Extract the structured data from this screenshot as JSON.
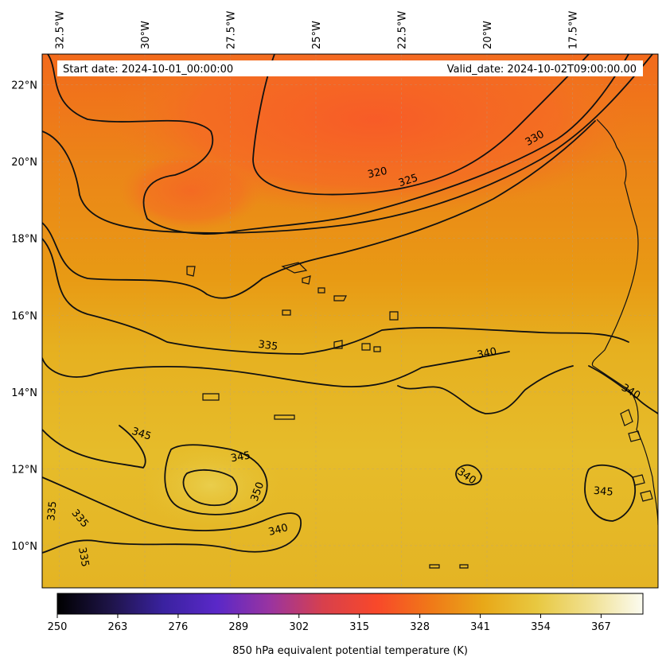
{
  "header": {
    "start_date": "Start date: 2024-10-01_00:00:00",
    "valid_date": "Valid_date: 2024-10-02T09:00:00.00"
  },
  "map": {
    "lon_range": [
      -33.0,
      -15.0
    ],
    "lat_range": [
      8.9,
      22.8
    ],
    "lon_ticks": [
      {
        "value": -32.5,
        "label": "32.5°W"
      },
      {
        "value": -30.0,
        "label": "30°W"
      },
      {
        "value": -27.5,
        "label": "27.5°W"
      },
      {
        "value": -25.0,
        "label": "25°W"
      },
      {
        "value": -22.5,
        "label": "22.5°W"
      },
      {
        "value": -20.0,
        "label": "20°W"
      },
      {
        "value": -17.5,
        "label": "17.5°W"
      }
    ],
    "lat_ticks": [
      {
        "value": 10,
        "label": "10°N"
      },
      {
        "value": 12,
        "label": "12°N"
      },
      {
        "value": 14,
        "label": "14°N"
      },
      {
        "value": 16,
        "label": "16°N"
      },
      {
        "value": 18,
        "label": "18°N"
      },
      {
        "value": 20,
        "label": "20°N"
      },
      {
        "value": 22,
        "label": "22°N"
      }
    ],
    "contour_labels": [
      {
        "text": "320",
        "lon": -23.2,
        "lat": 19.7,
        "rotate": -12
      },
      {
        "text": "325",
        "lon": -22.3,
        "lat": 19.5,
        "rotate": -18
      },
      {
        "text": "330",
        "lon": -18.6,
        "lat": 20.6,
        "rotate": -30
      },
      {
        "text": "335",
        "lon": -26.4,
        "lat": 15.2,
        "rotate": 8
      },
      {
        "text": "340",
        "lon": -20.0,
        "lat": 15.0,
        "rotate": -12
      },
      {
        "text": "340",
        "lon": -15.8,
        "lat": 14.0,
        "rotate": 30
      },
      {
        "text": "345",
        "lon": -30.1,
        "lat": 12.9,
        "rotate": 18
      },
      {
        "text": "345",
        "lon": -27.2,
        "lat": 12.3,
        "rotate": -10
      },
      {
        "text": "350",
        "lon": -26.7,
        "lat": 11.4,
        "rotate": -70
      },
      {
        "text": "340",
        "lon": -26.1,
        "lat": 10.4,
        "rotate": -15
      },
      {
        "text": "340",
        "lon": -20.6,
        "lat": 11.8,
        "rotate": 35
      },
      {
        "text": "345",
        "lon": -16.6,
        "lat": 11.4,
        "rotate": 5
      },
      {
        "text": "335",
        "lon": -32.7,
        "lat": 10.9,
        "rotate": -85
      },
      {
        "text": "335",
        "lon": -31.9,
        "lat": 10.7,
        "rotate": 50
      },
      {
        "text": "335",
        "lon": -31.8,
        "lat": 9.7,
        "rotate": 80
      }
    ]
  },
  "colorbar": {
    "label": "850 hPa equivalent potential temperature (K)",
    "min": 250,
    "max": 376,
    "ticks": [
      "250",
      "263",
      "276",
      "289",
      "302",
      "315",
      "328",
      "341",
      "354",
      "367"
    ],
    "stops": [
      "#000000",
      "#1e1448",
      "#3a22a0",
      "#5a28c8",
      "#9a34a0",
      "#d8404c",
      "#f8482a",
      "#f07818",
      "#e8a818",
      "#e8c840",
      "#f0e090",
      "#fbfbf0"
    ]
  }
}
